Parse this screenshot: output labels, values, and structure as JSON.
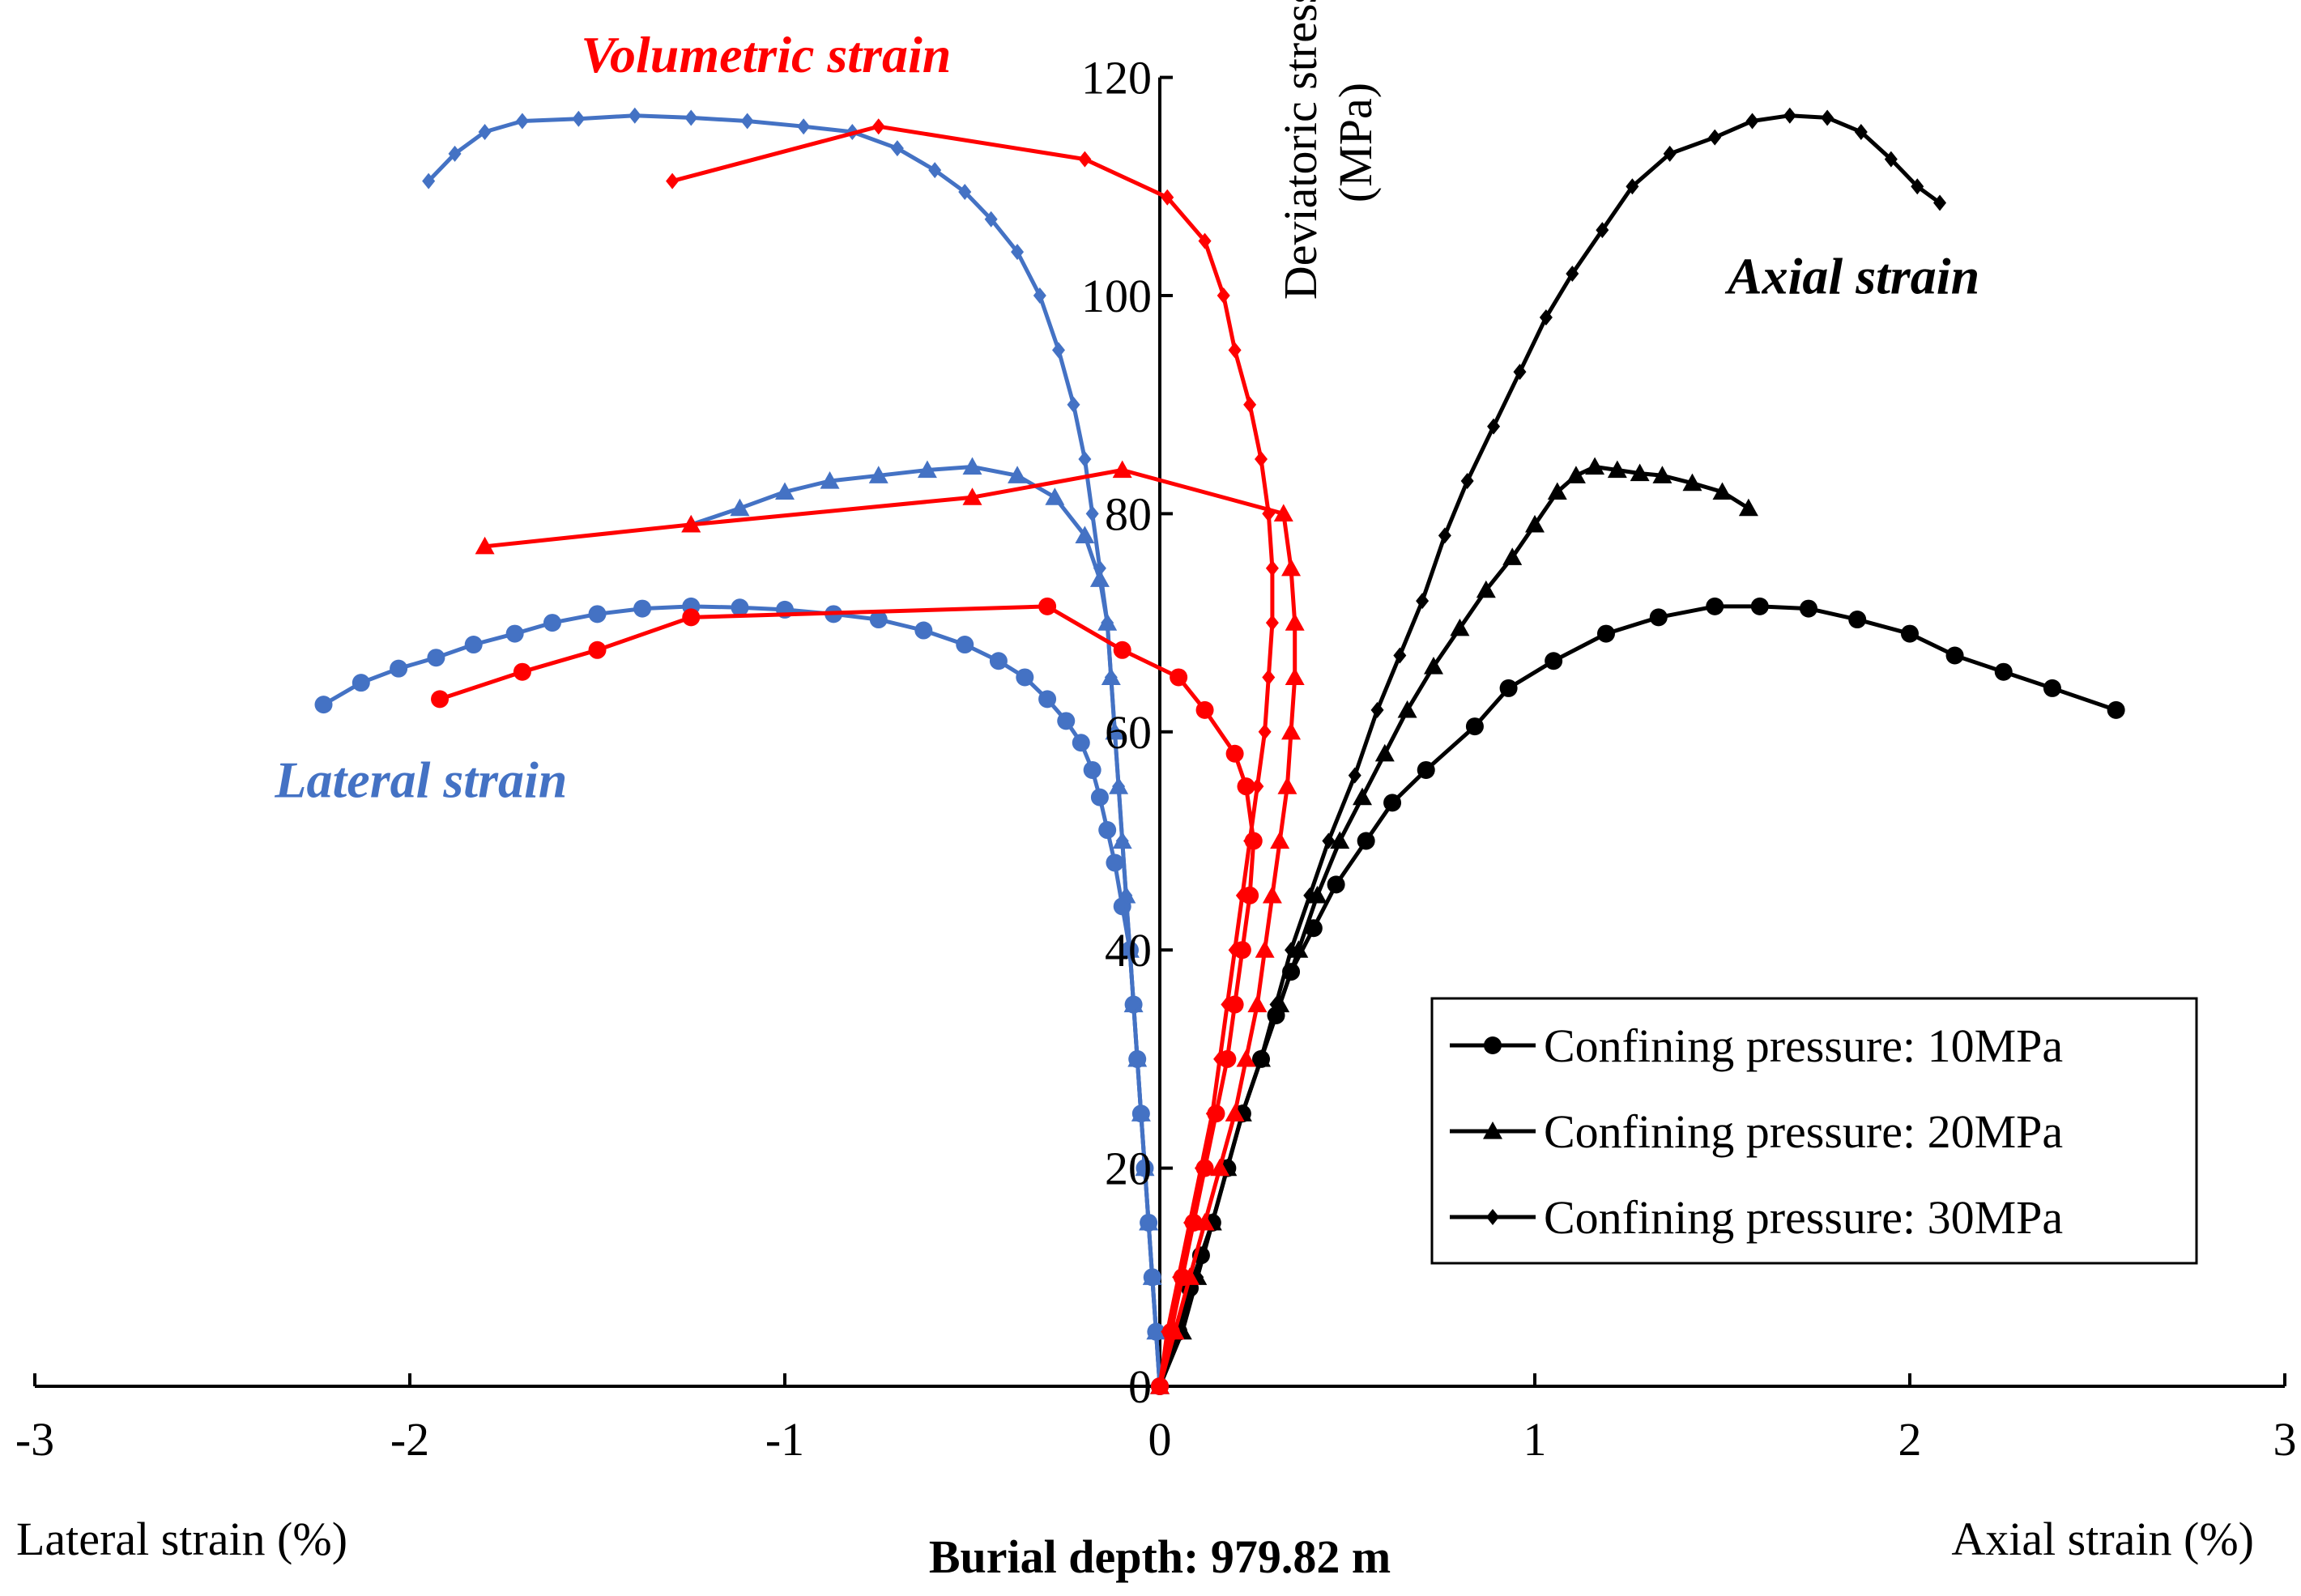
{
  "chart_data": {
    "type": "line",
    "title": "",
    "caption": "Burial depth: 979.82 m",
    "x_left_label": "Lateral strain (%)",
    "x_right_label": "Axial strain (%)",
    "ylabel": "Deviatoric stress (MPa)",
    "ylabel_lines": [
      "Deviatoric stress",
      "(MPa)"
    ],
    "xlim": [
      -3,
      3
    ],
    "ylim": [
      0,
      120
    ],
    "x_ticks": [
      {
        "value": -3,
        "label": "-3"
      },
      {
        "value": -2,
        "label": "-2"
      },
      {
        "value": -1,
        "label": "-1"
      },
      {
        "value": 0,
        "label": "0"
      },
      {
        "value": 1,
        "label": "1"
      },
      {
        "value": 2,
        "label": "2"
      },
      {
        "value": 3,
        "label": "3"
      }
    ],
    "y_ticks": [
      {
        "value": 0,
        "label": "0"
      },
      {
        "value": 20,
        "label": "20"
      },
      {
        "value": 40,
        "label": "40"
      },
      {
        "value": 60,
        "label": "60"
      },
      {
        "value": 80,
        "label": "80"
      },
      {
        "value": 100,
        "label": "100"
      },
      {
        "value": 120,
        "label": "120"
      }
    ],
    "annotations": [
      {
        "text": "Volumetric strain",
        "color": "#ff0000",
        "at": [
          -1.05,
          120.5
        ]
      },
      {
        "text": "Axial strain",
        "color": "#000000",
        "at": [
          1.85,
          100.2
        ]
      },
      {
        "text": "Lateral strain",
        "color": "#4472c4",
        "at": [
          -1.97,
          54
        ]
      }
    ],
    "legend": {
      "placement": "bottom-right",
      "entries": [
        {
          "label": "Confining pressure: 10MPa",
          "marker": "circle"
        },
        {
          "label": "Confining pressure: 20MPa",
          "marker": "triangle"
        },
        {
          "label": "Confining pressure: 30MPa",
          "marker": "diamond"
        }
      ]
    },
    "colors": {
      "axial": "#000000",
      "lateral": "#4472c4",
      "volumetric": "#ff0000"
    },
    "series": [
      {
        "name": "Axial strain, 10MPa",
        "group": "axial",
        "marker": "circle",
        "points": [
          [
            0,
            0
          ],
          [
            0.05,
            5
          ],
          [
            0.08,
            9
          ],
          [
            0.11,
            12
          ],
          [
            0.14,
            15
          ],
          [
            0.18,
            20
          ],
          [
            0.22,
            25
          ],
          [
            0.27,
            30
          ],
          [
            0.31,
            34
          ],
          [
            0.35,
            38
          ],
          [
            0.41,
            42
          ],
          [
            0.47,
            46
          ],
          [
            0.55,
            50
          ],
          [
            0.62,
            53.5
          ],
          [
            0.71,
            56.5
          ],
          [
            0.84,
            60.5
          ],
          [
            0.93,
            64
          ],
          [
            1.05,
            66.5
          ],
          [
            1.19,
            69
          ],
          [
            1.33,
            70.5
          ],
          [
            1.48,
            71.5
          ],
          [
            1.6,
            71.5
          ],
          [
            1.73,
            71.3
          ],
          [
            1.86,
            70.3
          ],
          [
            2.0,
            69
          ],
          [
            2.12,
            67
          ],
          [
            2.25,
            65.5
          ],
          [
            2.38,
            64
          ],
          [
            2.55,
            62
          ]
        ]
      },
      {
        "name": "Axial strain, 20MPa",
        "group": "axial",
        "marker": "triangle",
        "points": [
          [
            0,
            0
          ],
          [
            0.06,
            5
          ],
          [
            0.1,
            10
          ],
          [
            0.14,
            15
          ],
          [
            0.18,
            20
          ],
          [
            0.22,
            25
          ],
          [
            0.27,
            30
          ],
          [
            0.32,
            35
          ],
          [
            0.37,
            40
          ],
          [
            0.42,
            45
          ],
          [
            0.48,
            50
          ],
          [
            0.54,
            54
          ],
          [
            0.6,
            58
          ],
          [
            0.66,
            62
          ],
          [
            0.73,
            66
          ],
          [
            0.8,
            69.5
          ],
          [
            0.87,
            73
          ],
          [
            0.94,
            76
          ],
          [
            1.0,
            79
          ],
          [
            1.06,
            82
          ],
          [
            1.11,
            83.5
          ],
          [
            1.16,
            84.3
          ],
          [
            1.22,
            84
          ],
          [
            1.28,
            83.7
          ],
          [
            1.34,
            83.5
          ],
          [
            1.42,
            82.8
          ],
          [
            1.5,
            82
          ],
          [
            1.57,
            80.5
          ]
        ]
      },
      {
        "name": "Axial strain, 30MPa",
        "group": "axial",
        "marker": "diamond",
        "points": [
          [
            0,
            0
          ],
          [
            0.05,
            5
          ],
          [
            0.1,
            10
          ],
          [
            0.14,
            15
          ],
          [
            0.18,
            20
          ],
          [
            0.22,
            25
          ],
          [
            0.27,
            30
          ],
          [
            0.31,
            35
          ],
          [
            0.35,
            40
          ],
          [
            0.4,
            45
          ],
          [
            0.45,
            50
          ],
          [
            0.52,
            56
          ],
          [
            0.58,
            62
          ],
          [
            0.64,
            67
          ],
          [
            0.7,
            72
          ],
          [
            0.76,
            78
          ],
          [
            0.82,
            83
          ],
          [
            0.89,
            88
          ],
          [
            0.96,
            93
          ],
          [
            1.03,
            98
          ],
          [
            1.1,
            102
          ],
          [
            1.18,
            106
          ],
          [
            1.26,
            110
          ],
          [
            1.36,
            113
          ],
          [
            1.48,
            114.5
          ],
          [
            1.58,
            116
          ],
          [
            1.68,
            116.5
          ],
          [
            1.78,
            116.3
          ],
          [
            1.87,
            115
          ],
          [
            1.95,
            112.5
          ],
          [
            2.02,
            110
          ],
          [
            2.08,
            108.5
          ]
        ]
      },
      {
        "name": "Lateral strain, 10MPa",
        "group": "lateral",
        "marker": "circle",
        "points": [
          [
            0,
            0
          ],
          [
            -0.01,
            5
          ],
          [
            -0.02,
            10
          ],
          [
            -0.03,
            15
          ],
          [
            -0.04,
            20
          ],
          [
            -0.05,
            25
          ],
          [
            -0.06,
            30
          ],
          [
            -0.07,
            35
          ],
          [
            -0.08,
            40
          ],
          [
            -0.1,
            44
          ],
          [
            -0.12,
            48
          ],
          [
            -0.14,
            51
          ],
          [
            -0.16,
            54
          ],
          [
            -0.18,
            56.5
          ],
          [
            -0.21,
            59
          ],
          [
            -0.25,
            61
          ],
          [
            -0.3,
            63
          ],
          [
            -0.36,
            65
          ],
          [
            -0.43,
            66.5
          ],
          [
            -0.52,
            68
          ],
          [
            -0.63,
            69.3
          ],
          [
            -0.75,
            70.3
          ],
          [
            -0.87,
            70.8
          ],
          [
            -1.0,
            71.2
          ],
          [
            -1.12,
            71.4
          ],
          [
            -1.25,
            71.5
          ],
          [
            -1.38,
            71.3
          ],
          [
            -1.5,
            70.8
          ],
          [
            -1.62,
            70
          ],
          [
            -1.72,
            69
          ],
          [
            -1.83,
            68
          ],
          [
            -1.93,
            66.8
          ],
          [
            -2.03,
            65.8
          ],
          [
            -2.13,
            64.5
          ],
          [
            -2.23,
            62.5
          ]
        ]
      },
      {
        "name": "Lateral strain, 20MPa",
        "group": "lateral",
        "marker": "triangle",
        "points": [
          [
            0,
            0
          ],
          [
            -0.01,
            5
          ],
          [
            -0.02,
            10
          ],
          [
            -0.03,
            15
          ],
          [
            -0.04,
            20
          ],
          [
            -0.05,
            25
          ],
          [
            -0.06,
            30
          ],
          [
            -0.07,
            35
          ],
          [
            -0.08,
            40
          ],
          [
            -0.09,
            45
          ],
          [
            -0.1,
            50
          ],
          [
            -0.11,
            55
          ],
          [
            -0.12,
            60
          ],
          [
            -0.13,
            65
          ],
          [
            -0.14,
            70
          ],
          [
            -0.16,
            74
          ],
          [
            -0.2,
            78
          ],
          [
            -0.28,
            81.5
          ],
          [
            -0.38,
            83.5
          ],
          [
            -0.5,
            84.3
          ],
          [
            -0.62,
            84
          ],
          [
            -0.75,
            83.5
          ],
          [
            -0.88,
            83
          ],
          [
            -1.0,
            82
          ],
          [
            -1.12,
            80.5
          ],
          [
            -1.25,
            79
          ]
        ]
      },
      {
        "name": "Lateral strain, 30MPa",
        "group": "lateral",
        "marker": "diamond",
        "points": [
          [
            0,
            0
          ],
          [
            -0.01,
            5
          ],
          [
            -0.02,
            10
          ],
          [
            -0.03,
            15
          ],
          [
            -0.04,
            20
          ],
          [
            -0.05,
            25
          ],
          [
            -0.06,
            30
          ],
          [
            -0.07,
            35
          ],
          [
            -0.08,
            40
          ],
          [
            -0.09,
            45
          ],
          [
            -0.1,
            50
          ],
          [
            -0.11,
            55
          ],
          [
            -0.12,
            60
          ],
          [
            -0.13,
            65
          ],
          [
            -0.14,
            70
          ],
          [
            -0.16,
            75
          ],
          [
            -0.18,
            80
          ],
          [
            -0.2,
            85
          ],
          [
            -0.23,
            90
          ],
          [
            -0.27,
            95
          ],
          [
            -0.32,
            100
          ],
          [
            -0.38,
            104
          ],
          [
            -0.45,
            107
          ],
          [
            -0.52,
            109.5
          ],
          [
            -0.6,
            111.5
          ],
          [
            -0.7,
            113.5
          ],
          [
            -0.82,
            115
          ],
          [
            -0.95,
            115.5
          ],
          [
            -1.1,
            116
          ],
          [
            -1.25,
            116.3
          ],
          [
            -1.4,
            116.5
          ],
          [
            -1.55,
            116.2
          ],
          [
            -1.7,
            116
          ],
          [
            -1.8,
            115
          ],
          [
            -1.88,
            113
          ],
          [
            -1.95,
            110.5
          ]
        ]
      },
      {
        "name": "Volumetric strain, 10MPa",
        "group": "volumetric",
        "marker": "circle",
        "points": [
          [
            0,
            0
          ],
          [
            0.03,
            5
          ],
          [
            0.06,
            10
          ],
          [
            0.09,
            15
          ],
          [
            0.12,
            20
          ],
          [
            0.15,
            25
          ],
          [
            0.18,
            30
          ],
          [
            0.2,
            35
          ],
          [
            0.22,
            40
          ],
          [
            0.24,
            45
          ],
          [
            0.25,
            50
          ],
          [
            0.23,
            55
          ],
          [
            0.2,
            58
          ],
          [
            0.12,
            62
          ],
          [
            0.05,
            65
          ],
          [
            -0.1,
            67.5
          ],
          [
            -0.3,
            71.5
          ],
          [
            -1.25,
            70.5
          ],
          [
            -1.5,
            67.5
          ],
          [
            -1.7,
            65.5
          ],
          [
            -1.92,
            63
          ]
        ]
      },
      {
        "name": "Volumetric strain, 20MPa",
        "group": "volumetric",
        "marker": "triangle",
        "points": [
          [
            0,
            0
          ],
          [
            0.04,
            5
          ],
          [
            0.08,
            10
          ],
          [
            0.12,
            15
          ],
          [
            0.16,
            20
          ],
          [
            0.2,
            25
          ],
          [
            0.23,
            30
          ],
          [
            0.26,
            35
          ],
          [
            0.28,
            40
          ],
          [
            0.3,
            45
          ],
          [
            0.32,
            50
          ],
          [
            0.34,
            55
          ],
          [
            0.35,
            60
          ],
          [
            0.36,
            65
          ],
          [
            0.36,
            70
          ],
          [
            0.35,
            75
          ],
          [
            0.33,
            80
          ],
          [
            -0.1,
            84
          ],
          [
            -0.5,
            81.5
          ],
          [
            -1.25,
            79
          ],
          [
            -1.8,
            77
          ]
        ]
      },
      {
        "name": "Volumetric strain, 30MPa",
        "group": "volumetric",
        "marker": "diamond",
        "points": [
          [
            0,
            0
          ],
          [
            0.02,
            5
          ],
          [
            0.05,
            10
          ],
          [
            0.08,
            15
          ],
          [
            0.11,
            20
          ],
          [
            0.14,
            25
          ],
          [
            0.16,
            30
          ],
          [
            0.18,
            35
          ],
          [
            0.2,
            40
          ],
          [
            0.22,
            45
          ],
          [
            0.24,
            50
          ],
          [
            0.26,
            55
          ],
          [
            0.28,
            60
          ],
          [
            0.29,
            65
          ],
          [
            0.3,
            70
          ],
          [
            0.3,
            75
          ],
          [
            0.29,
            80
          ],
          [
            0.27,
            85
          ],
          [
            0.24,
            90
          ],
          [
            0.2,
            95
          ],
          [
            0.17,
            100
          ],
          [
            0.12,
            105
          ],
          [
            0.02,
            109
          ],
          [
            -0.2,
            112.5
          ],
          [
            -0.75,
            115.5
          ],
          [
            -1.3,
            110.5
          ]
        ]
      }
    ]
  }
}
